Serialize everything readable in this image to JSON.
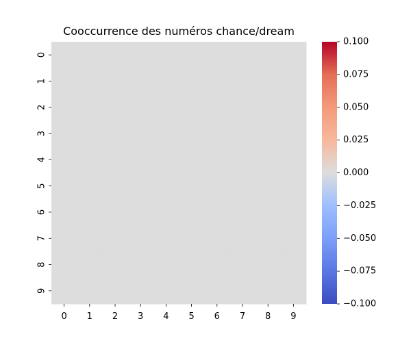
{
  "chart_data": {
    "type": "heatmap",
    "title": "Cooccurrence des numéros chance/dream",
    "xlabel": "",
    "ylabel": "",
    "x_categories": [
      "0",
      "1",
      "2",
      "3",
      "4",
      "5",
      "6",
      "7",
      "8",
      "9"
    ],
    "y_categories": [
      "0",
      "1",
      "2",
      "3",
      "4",
      "5",
      "6",
      "7",
      "8",
      "9"
    ],
    "values": [
      [
        0,
        0,
        0,
        0,
        0,
        0,
        0,
        0,
        0,
        0
      ],
      [
        0,
        0,
        0,
        0,
        0,
        0,
        0,
        0,
        0,
        0
      ],
      [
        0,
        0,
        0,
        0,
        0,
        0,
        0,
        0,
        0,
        0
      ],
      [
        0,
        0,
        0,
        0,
        0,
        0,
        0,
        0,
        0,
        0
      ],
      [
        0,
        0,
        0,
        0,
        0,
        0,
        0,
        0,
        0,
        0
      ],
      [
        0,
        0,
        0,
        0,
        0,
        0,
        0,
        0,
        0,
        0
      ],
      [
        0,
        0,
        0,
        0,
        0,
        0,
        0,
        0,
        0,
        0
      ],
      [
        0,
        0,
        0,
        0,
        0,
        0,
        0,
        0,
        0,
        0
      ],
      [
        0,
        0,
        0,
        0,
        0,
        0,
        0,
        0,
        0,
        0
      ],
      [
        0,
        0,
        0,
        0,
        0,
        0,
        0,
        0,
        0,
        0
      ]
    ],
    "colormap": "coolwarm",
    "color_low": "#3b4cc0",
    "color_mid": "#dddddd",
    "color_high": "#b40426",
    "colorbar": {
      "range": [
        -0.1,
        0.1
      ],
      "ticks": [
        "0.100",
        "0.075",
        "0.050",
        "0.025",
        "0.000",
        "−0.025",
        "−0.050",
        "−0.075",
        "−0.100"
      ]
    },
    "grid": false
  }
}
